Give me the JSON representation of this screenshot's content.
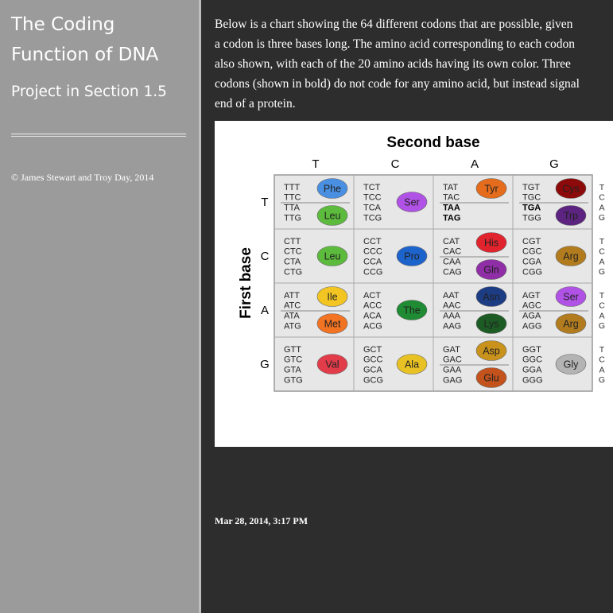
{
  "sidebar": {
    "title_lines": [
      "The Coding",
      "Function of DNA"
    ],
    "subtitle": "Project in Section 1.5",
    "copyright": "© James Stewart and Troy Day, 2014"
  },
  "article": {
    "lines": [
      "Below is a chart showing the 64 different codons that are possible, given",
      "a codon is three bases long. The amino acid corresponding to each codon",
      "also shown, with each of the 20 amino acids having its own color. Three",
      "codons (shown in bold) do not code for any amino acid, but instead signal",
      "end of a protein."
    ],
    "figure": {
      "x_axis_label": "Second base",
      "y_axis_label": "First base",
      "second_base": [
        "T",
        "C",
        "A",
        "G"
      ],
      "first_base": [
        "T",
        "C",
        "A",
        "G"
      ],
      "third_base": [
        "T",
        "C",
        "A",
        "G"
      ],
      "rows": [
        [
          {
            "codons": [
              "TTT",
              "TTC",
              "TTA",
              "TTG"
            ],
            "amino_acids": [
              {
                "name": "Phe",
                "color": "#4a90e2"
              },
              {
                "name": "Leu",
                "color": "#5cbb3c"
              }
            ]
          },
          {
            "codons": [
              "TCT",
              "TCC",
              "TCA",
              "TCG"
            ],
            "amino_acids": [
              {
                "name": "Ser",
                "color": "#b052e6"
              }
            ]
          },
          {
            "codons": [
              "TAT",
              "TAC",
              {
                "text": "TAA",
                "bold": true
              },
              {
                "text": "TAG",
                "bold": true
              }
            ],
            "amino_acids": [
              {
                "name": "Tyr",
                "color": "#e46c1c"
              },
              null
            ]
          },
          {
            "codons": [
              "TGT",
              "TGC",
              {
                "text": "TGA",
                "bold": true
              },
              "TGG"
            ],
            "amino_acids": [
              {
                "name": "Cys",
                "color": "#8c0a0a"
              },
              {
                "name": "Trp",
                "color": "#5c2480"
              }
            ]
          }
        ],
        [
          {
            "codons": [
              "CTT",
              "CTC",
              "CTA",
              "CTG"
            ],
            "amino_acids": [
              {
                "name": "Leu",
                "color": "#5cbb3c"
              }
            ]
          },
          {
            "codons": [
              "CCT",
              "CCC",
              "CCA",
              "CCG"
            ],
            "amino_acids": [
              {
                "name": "Pro",
                "color": "#1d63cc"
              }
            ]
          },
          {
            "codons": [
              "CAT",
              "CAC",
              "CAA",
              "CAG"
            ],
            "amino_acids": [
              {
                "name": "His",
                "color": "#e0232c"
              },
              {
                "name": "Gln",
                "color": "#8f2ea6"
              }
            ]
          },
          {
            "codons": [
              "CGT",
              "CGC",
              "CGA",
              "CGG"
            ],
            "amino_acids": [
              {
                "name": "Arg",
                "color": "#b27c1e"
              }
            ]
          }
        ],
        [
          {
            "codons": [
              "ATT",
              "ATC",
              "ATA",
              "ATG"
            ],
            "amino_acids": [
              {
                "name": "Ile",
                "color": "#f2c522"
              },
              {
                "name": "Met",
                "color": "#f27322"
              }
            ]
          },
          {
            "codons": [
              "ACT",
              "ACC",
              "ACA",
              "ACG"
            ],
            "amino_acids": [
              {
                "name": "The",
                "color": "#1f8c34"
              }
            ]
          },
          {
            "codons": [
              "AAT",
              "AAC",
              "AAA",
              "AAG"
            ],
            "amino_acids": [
              {
                "name": "Asn",
                "color": "#1c3c84"
              },
              {
                "name": "Lys",
                "color": "#1c5c24"
              }
            ]
          },
          {
            "codons": [
              "AGT",
              "AGC",
              "AGA",
              "AGG"
            ],
            "amino_acids": [
              {
                "name": "Ser",
                "color": "#b052e6"
              },
              {
                "name": "Arg",
                "color": "#b27c1e"
              }
            ]
          }
        ],
        [
          {
            "codons": [
              "GTT",
              "GTC",
              "GTA",
              "GTG"
            ],
            "amino_acids": [
              {
                "name": "Val",
                "color": "#e23c4a"
              }
            ]
          },
          {
            "codons": [
              "GCT",
              "GCC",
              "GCA",
              "GCG"
            ],
            "amino_acids": [
              {
                "name": "Ala",
                "color": "#e8c224"
              }
            ]
          },
          {
            "codons": [
              "GAT",
              "GAC",
              "GAA",
              "GAG"
            ],
            "amino_acids": [
              {
                "name": "Asp",
                "color": "#c8921c"
              },
              {
                "name": "Glu",
                "color": "#c4521c"
              }
            ]
          },
          {
            "codons": [
              "GGT",
              "GGC",
              "GGA",
              "GGG"
            ],
            "amino_acids": [
              {
                "name": "Gly",
                "color": "#b4b4b4"
              }
            ]
          }
        ]
      ]
    },
    "date": "Mar 28, 2014, 3:17 PM"
  }
}
